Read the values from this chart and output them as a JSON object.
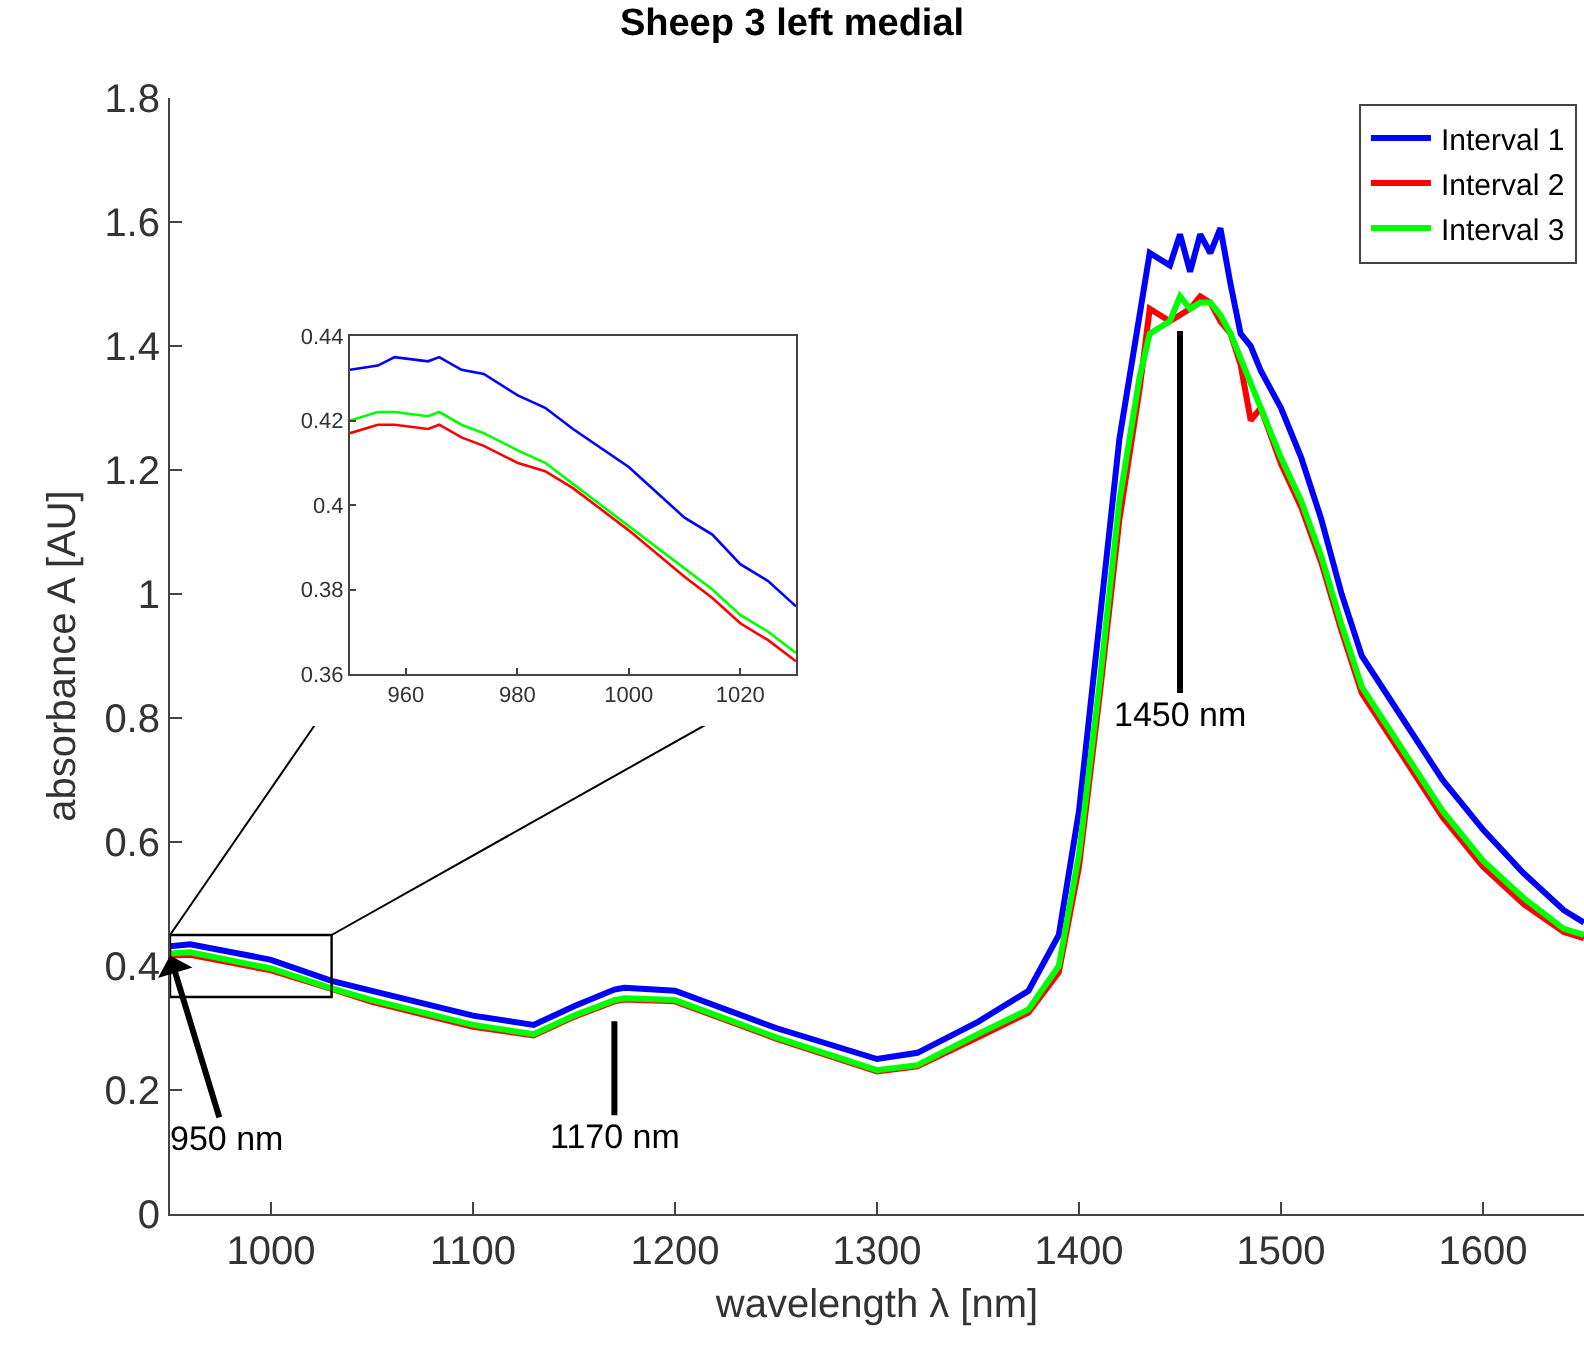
{
  "chart_data": [
    {
      "type": "line",
      "title": "Sheep 3 left medial",
      "xlabel": "wavelength λ [nm]",
      "ylabel": "absorbance A [AU]",
      "xlim": [
        950,
        1650
      ],
      "ylim": [
        0,
        1.8
      ],
      "xticks": [
        1000,
        1100,
        1200,
        1300,
        1400,
        1500,
        1600
      ],
      "yticks": [
        0,
        0.2,
        0.4,
        0.6,
        0.8,
        1,
        1.2,
        1.4,
        1.6,
        1.8
      ],
      "grid": false,
      "legend": "top right",
      "marker": "none",
      "line_style": "solid",
      "x": [
        950,
        960,
        1000,
        1030,
        1050,
        1100,
        1130,
        1150,
        1170,
        1175,
        1200,
        1250,
        1300,
        1320,
        1350,
        1375,
        1390,
        1400,
        1410,
        1420,
        1430,
        1435,
        1445,
        1450,
        1455,
        1460,
        1465,
        1470,
        1475,
        1480,
        1485,
        1490,
        1500,
        1510,
        1520,
        1530,
        1540,
        1560,
        1580,
        1600,
        1620,
        1640,
        1650
      ],
      "series": [
        {
          "name": "Interval 1",
          "color": "#0000ff",
          "values": [
            0.432,
            0.435,
            0.41,
            0.376,
            0.36,
            0.32,
            0.305,
            0.335,
            0.362,
            0.365,
            0.36,
            0.3,
            0.25,
            0.26,
            0.31,
            0.36,
            0.45,
            0.65,
            0.95,
            1.25,
            1.45,
            1.55,
            1.53,
            1.58,
            1.52,
            1.58,
            1.55,
            1.59,
            1.5,
            1.42,
            1.4,
            1.36,
            1.3,
            1.22,
            1.12,
            1.0,
            0.9,
            0.8,
            0.7,
            0.62,
            0.55,
            0.49,
            0.47
          ]
        },
        {
          "name": "Interval 2",
          "color": "#ff0000",
          "values": [
            0.417,
            0.418,
            0.393,
            0.363,
            0.342,
            0.302,
            0.288,
            0.318,
            0.343,
            0.346,
            0.343,
            0.283,
            0.23,
            0.238,
            0.285,
            0.325,
            0.39,
            0.56,
            0.83,
            1.12,
            1.33,
            1.46,
            1.44,
            1.45,
            1.46,
            1.48,
            1.47,
            1.44,
            1.42,
            1.37,
            1.28,
            1.3,
            1.21,
            1.14,
            1.05,
            0.94,
            0.84,
            0.74,
            0.64,
            0.56,
            0.5,
            0.455,
            0.445
          ]
        },
        {
          "name": "Interval 3",
          "color": "#00ff00",
          "values": [
            0.42,
            0.422,
            0.396,
            0.364,
            0.345,
            0.305,
            0.29,
            0.32,
            0.345,
            0.348,
            0.345,
            0.285,
            0.232,
            0.24,
            0.29,
            0.33,
            0.4,
            0.58,
            0.85,
            1.15,
            1.35,
            1.42,
            1.44,
            1.48,
            1.46,
            1.47,
            1.47,
            1.45,
            1.42,
            1.38,
            1.34,
            1.3,
            1.22,
            1.15,
            1.06,
            0.95,
            0.85,
            0.75,
            0.65,
            0.57,
            0.51,
            0.46,
            0.45
          ]
        }
      ],
      "annotations": [
        {
          "text": "1450 nm",
          "x": 1450,
          "y": 1.45
        },
        {
          "text": "1170 nm",
          "x": 1170,
          "y": 0.343
        },
        {
          "text": "950 nm",
          "x": 950,
          "y": 0.417
        }
      ]
    },
    {
      "type": "line",
      "xlim": [
        950,
        1030
      ],
      "ylim": [
        0.36,
        0.44
      ],
      "xticks": [
        960,
        980,
        1000,
        1020
      ],
      "yticks": [
        0.36,
        0.38,
        0.4,
        0.42,
        0.44
      ],
      "grid": false,
      "legend": false,
      "marker": "none",
      "line_style": "solid",
      "x": [
        950,
        955,
        958,
        964,
        966,
        970,
        974,
        980,
        985,
        990,
        1000,
        1010,
        1015,
        1020,
        1025,
        1030
      ],
      "series": [
        {
          "color": "#0000ff",
          "values": [
            0.432,
            0.433,
            0.435,
            0.434,
            0.435,
            0.432,
            0.431,
            0.426,
            0.423,
            0.418,
            0.409,
            0.397,
            0.393,
            0.386,
            0.382,
            0.376
          ]
        },
        {
          "color": "#ff0000",
          "values": [
            0.417,
            0.419,
            0.419,
            0.418,
            0.419,
            0.416,
            0.414,
            0.41,
            0.408,
            0.404,
            0.394,
            0.383,
            0.378,
            0.372,
            0.368,
            0.363
          ]
        },
        {
          "color": "#00ff00",
          "values": [
            0.42,
            0.422,
            0.422,
            0.421,
            0.422,
            0.419,
            0.417,
            0.413,
            0.41,
            0.405,
            0.395,
            0.385,
            0.38,
            0.374,
            0.37,
            0.365
          ]
        }
      ]
    }
  ]
}
